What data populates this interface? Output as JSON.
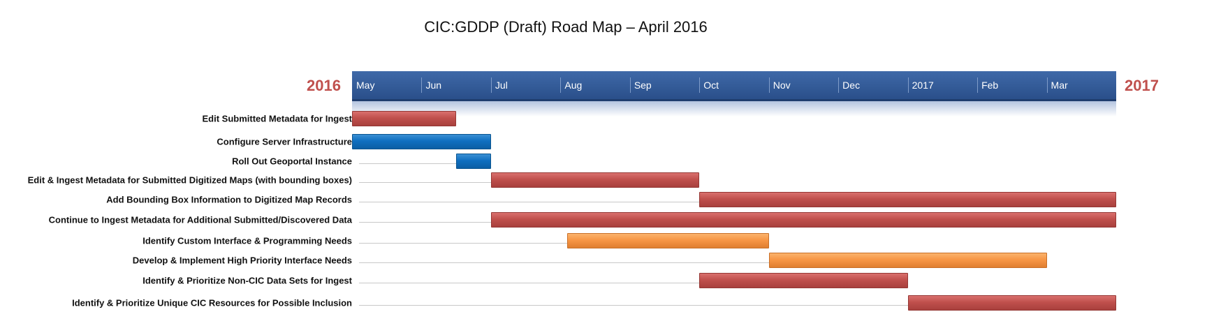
{
  "chart_data": {
    "type": "gantt",
    "title": "CIC:GDDP (Draft) Road Map – April 2016",
    "year_start_label": "2016",
    "year_end_label": "2017",
    "months": [
      "May",
      "Jun",
      "Jul",
      "Aug",
      "Sep",
      "Oct",
      "Nov",
      "Dec",
      "2017",
      "Feb",
      "Mar"
    ],
    "x_unit": "months from start of May 2016",
    "xlim": [
      0,
      11
    ],
    "colors": {
      "red": "#c0504d",
      "blue": "#0f6fc0",
      "orange": "#f79646",
      "band": "#2e5591"
    },
    "tasks": [
      {
        "label": "Edit Submitted Metadata for Ingest",
        "start": 0.0,
        "end": 1.5,
        "color": "red"
      },
      {
        "label": "Configure Server Infrastructure",
        "start": 0.0,
        "end": 2.0,
        "color": "blue"
      },
      {
        "label": "Roll Out Geoportal Instance",
        "start": 1.5,
        "end": 2.0,
        "color": "blue"
      },
      {
        "label": "Edit & Ingest Metadata for Submitted Digitized Maps (with bounding boxes)",
        "start": 2.0,
        "end": 5.0,
        "color": "red"
      },
      {
        "label": "Add Bounding Box Information to Digitized Map Records",
        "start": 5.0,
        "end": 11.0,
        "color": "red"
      },
      {
        "label": "Continue to Ingest Metadata for Additional Submitted/Discovered  Data",
        "start": 2.0,
        "end": 11.0,
        "color": "red"
      },
      {
        "label": "Identify Custom Interface & Programming Needs",
        "start": 3.1,
        "end": 6.0,
        "color": "orange"
      },
      {
        "label": "Develop & Implement High Priority Interface Needs",
        "start": 6.0,
        "end": 10.0,
        "color": "orange"
      },
      {
        "label": "Identify & Prioritize Non-CIC Data Sets for Ingest",
        "start": 5.0,
        "end": 8.0,
        "color": "red"
      },
      {
        "label": "Identify  & Prioritize Unique CIC Resources for Possible Inclusion",
        "start": 8.0,
        "end": 11.0,
        "color": "red"
      }
    ]
  }
}
